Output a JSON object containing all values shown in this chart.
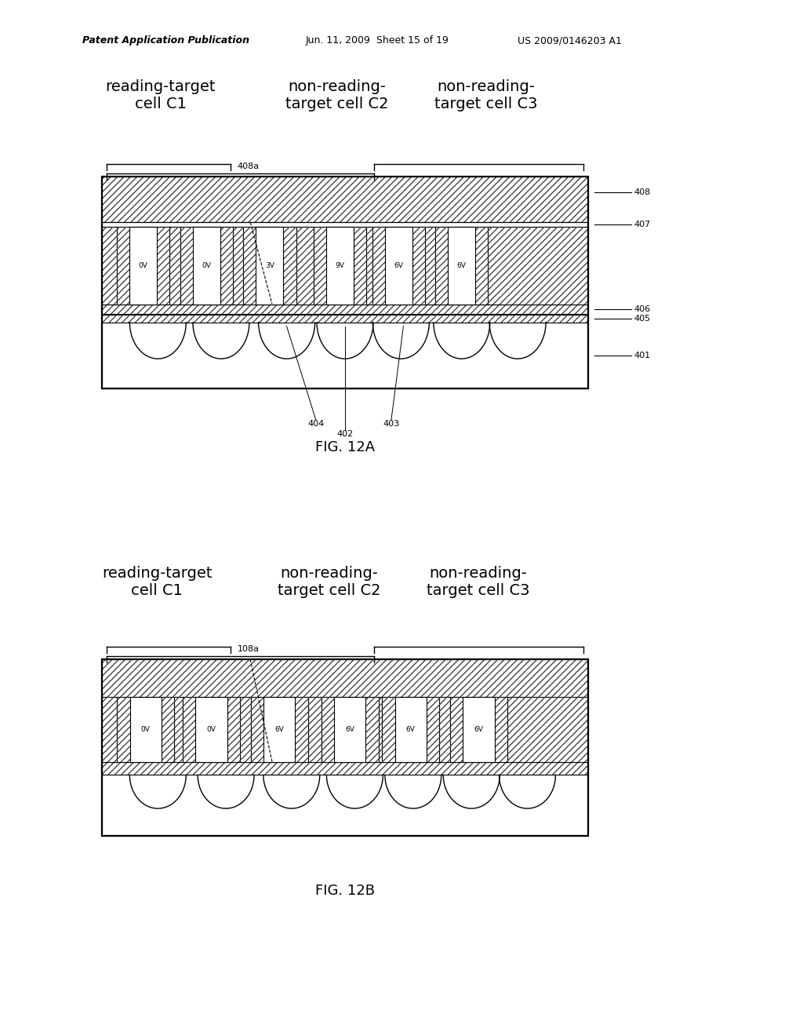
{
  "bg_color": "#ffffff",
  "header_text": "Patent Application Publication",
  "header_date": "Jun. 11, 2009  Sheet 15 of 19",
  "header_patent": "US 2009/0146203 A1",
  "fig1_label": "FIG. 12A",
  "fig2_label": "FIG. 12B",
  "fig1_bracket_label": "408a",
  "fig2_bracket_label": "108a",
  "fig1_voltages": [
    "0V",
    "0V",
    "3V",
    "9V",
    "6V",
    "6V"
  ],
  "fig2_voltages": [
    "0V",
    "0V",
    "6V",
    "6V",
    "6V",
    "6V"
  ],
  "hatch_pattern": "////",
  "line_color": "#000000",
  "hatch_color": "#000000"
}
